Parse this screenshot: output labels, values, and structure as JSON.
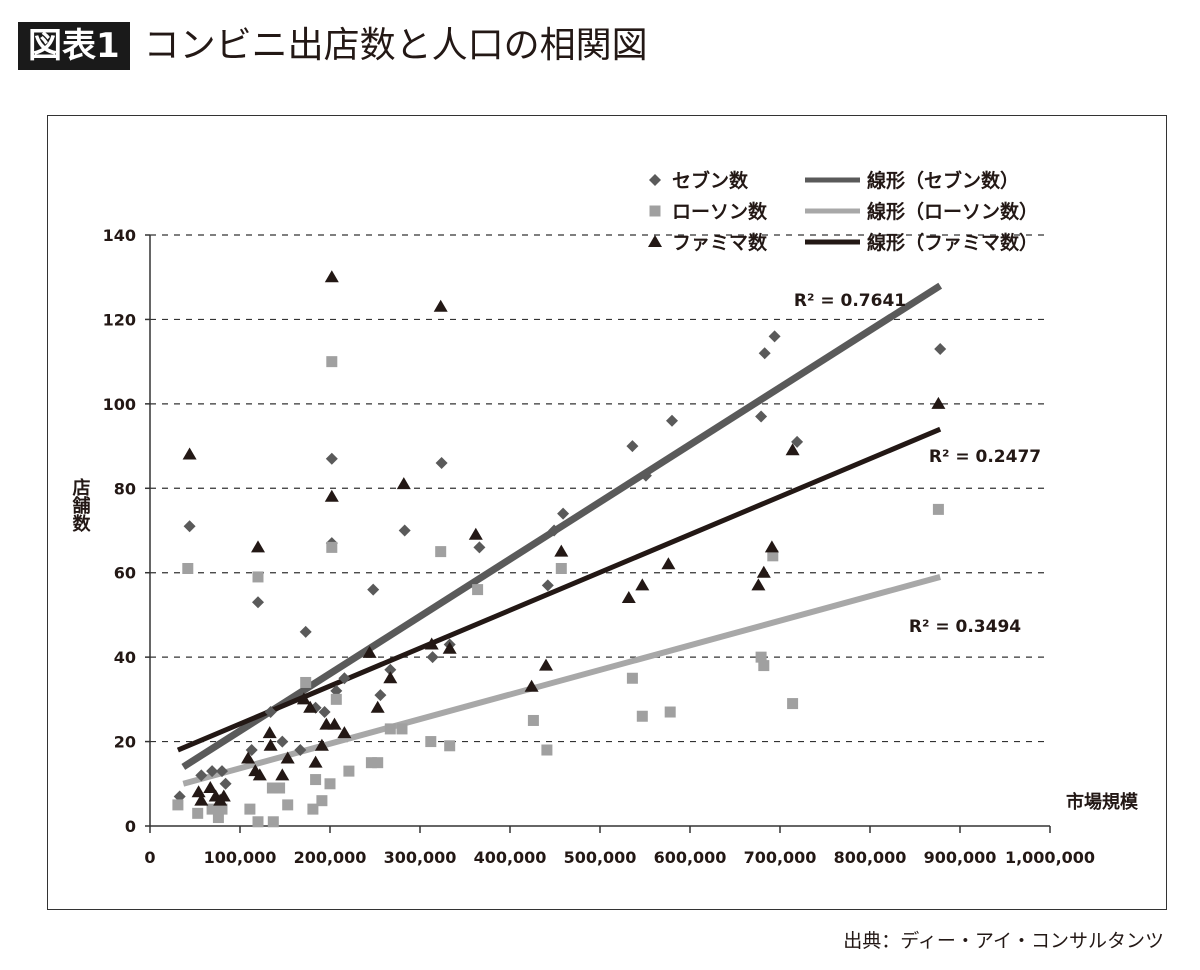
{
  "header": {
    "badge": "図表1",
    "title": "コンビニ出店数と人口の相関図"
  },
  "source": "出典：ディー・アイ・コンサルタンツ",
  "chart_data": {
    "type": "scatter",
    "xlabel": "市場規模",
    "ylabel": "店舗数",
    "xlim": [
      0,
      1000000
    ],
    "ylim": [
      0,
      140
    ],
    "xticks": [
      "0",
      "100,000",
      "200,000",
      "300,000",
      "400,000",
      "500,000",
      "600,000",
      "700,000",
      "800,000",
      "900,000",
      "1,000,000"
    ],
    "yticks": [
      "0",
      "20",
      "40",
      "60",
      "80",
      "100",
      "120",
      "140"
    ],
    "grid": "horizontal-dashed",
    "legend": "top-right",
    "series": [
      {
        "name": "セブン数",
        "marker": "diamond",
        "color": "#5a5a5a",
        "points": [
          [
            33000,
            7
          ],
          [
            44000,
            71
          ],
          [
            57000,
            12
          ],
          [
            69000,
            13
          ],
          [
            80000,
            13
          ],
          [
            84000,
            10
          ],
          [
            113000,
            18
          ],
          [
            120000,
            53
          ],
          [
            134000,
            27
          ],
          [
            147000,
            20
          ],
          [
            167000,
            18
          ],
          [
            173000,
            46
          ],
          [
            184000,
            28
          ],
          [
            194000,
            27
          ],
          [
            202000,
            87
          ],
          [
            202000,
            67
          ],
          [
            207000,
            32
          ],
          [
            216000,
            35
          ],
          [
            248000,
            56
          ],
          [
            256000,
            31
          ],
          [
            267000,
            37
          ],
          [
            283000,
            70
          ],
          [
            314000,
            40
          ],
          [
            324000,
            86
          ],
          [
            333000,
            43
          ],
          [
            366000,
            66
          ],
          [
            442000,
            57
          ],
          [
            449000,
            70
          ],
          [
            459000,
            74
          ],
          [
            536000,
            90
          ],
          [
            551000,
            83
          ],
          [
            580000,
            96
          ],
          [
            679000,
            97
          ],
          [
            683000,
            112
          ],
          [
            694000,
            116
          ],
          [
            719000,
            91
          ],
          [
            878000,
            113
          ]
        ]
      },
      {
        "name": "ローソン数",
        "marker": "square",
        "color": "#a0a0a0",
        "points": [
          [
            31000,
            5
          ],
          [
            42000,
            61
          ],
          [
            53000,
            3
          ],
          [
            69000,
            4
          ],
          [
            76000,
            2
          ],
          [
            80000,
            4
          ],
          [
            111000,
            4
          ],
          [
            120000,
            59
          ],
          [
            120000,
            1
          ],
          [
            136000,
            9
          ],
          [
            144000,
            9
          ],
          [
            137000,
            1
          ],
          [
            153000,
            5
          ],
          [
            173000,
            34
          ],
          [
            181000,
            4
          ],
          [
            184000,
            11
          ],
          [
            191000,
            6
          ],
          [
            200000,
            10
          ],
          [
            202000,
            110
          ],
          [
            202000,
            66
          ],
          [
            207000,
            30
          ],
          [
            221000,
            13
          ],
          [
            246000,
            15
          ],
          [
            253000,
            15
          ],
          [
            267000,
            23
          ],
          [
            280000,
            23
          ],
          [
            312000,
            20
          ],
          [
            323000,
            65
          ],
          [
            333000,
            19
          ],
          [
            364000,
            56
          ],
          [
            426000,
            25
          ],
          [
            441000,
            18
          ],
          [
            457000,
            61
          ],
          [
            536000,
            35
          ],
          [
            547000,
            26
          ],
          [
            578000,
            27
          ],
          [
            679000,
            40
          ],
          [
            682000,
            38
          ],
          [
            692000,
            64
          ],
          [
            714000,
            29
          ],
          [
            876000,
            75
          ]
        ]
      },
      {
        "name": "ファミマ数",
        "marker": "triangle",
        "color": "#231815",
        "points": [
          [
            44000,
            88
          ],
          [
            54000,
            8
          ],
          [
            57000,
            6
          ],
          [
            67000,
            9
          ],
          [
            73000,
            7
          ],
          [
            78000,
            6
          ],
          [
            82000,
            7
          ],
          [
            109000,
            16
          ],
          [
            117000,
            13
          ],
          [
            120000,
            66
          ],
          [
            122000,
            12
          ],
          [
            133000,
            22
          ],
          [
            134000,
            19
          ],
          [
            147000,
            12
          ],
          [
            153000,
            16
          ],
          [
            171000,
            30
          ],
          [
            178000,
            28
          ],
          [
            184000,
            15
          ],
          [
            191000,
            19
          ],
          [
            196000,
            24
          ],
          [
            202000,
            130
          ],
          [
            202000,
            78
          ],
          [
            205000,
            24
          ],
          [
            216000,
            22
          ],
          [
            244000,
            41
          ],
          [
            253000,
            28
          ],
          [
            267000,
            35
          ],
          [
            282000,
            81
          ],
          [
            313000,
            43
          ],
          [
            323000,
            123
          ],
          [
            333000,
            42
          ],
          [
            362000,
            69
          ],
          [
            424000,
            33
          ],
          [
            440000,
            38
          ],
          [
            457000,
            65
          ],
          [
            532000,
            54
          ],
          [
            547000,
            57
          ],
          [
            576000,
            62
          ],
          [
            676000,
            57
          ],
          [
            682000,
            60
          ],
          [
            691000,
            66
          ],
          [
            714000,
            89
          ],
          [
            876000,
            100
          ]
        ]
      }
    ],
    "trendlines": [
      {
        "name": "線形（セブン数）",
        "color": "#5a5a5a",
        "x": [
          37000,
          878000
        ],
        "y": [
          14,
          128
        ],
        "r2_label": "R² = 0.7641"
      },
      {
        "name": "線形（ローソン数）",
        "color": "#a8a8a8",
        "x": [
          37000,
          878000
        ],
        "y": [
          10,
          59
        ],
        "r2_label": "R² = 0.2477"
      },
      {
        "name": "線形（ファミマ数）",
        "color": "#231815",
        "x": [
          31000,
          878000
        ],
        "y": [
          18,
          94
        ],
        "r2_label": "R² = 0.3494"
      }
    ]
  }
}
